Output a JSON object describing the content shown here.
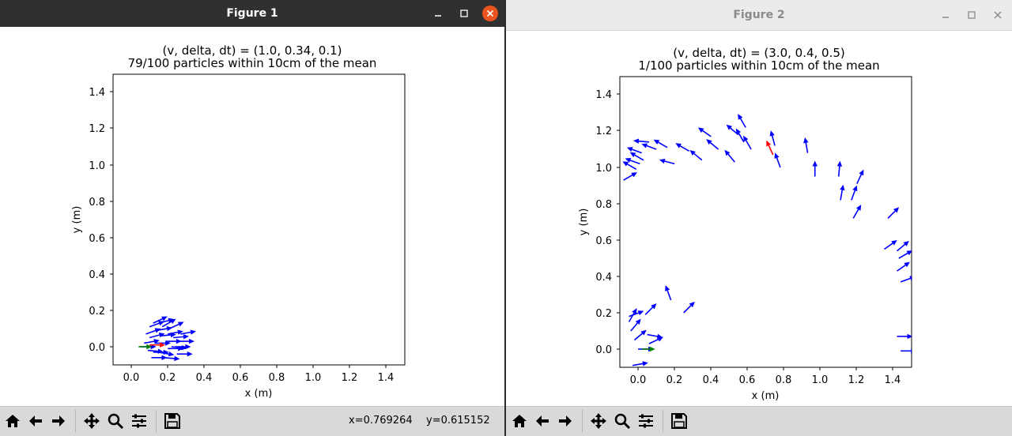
{
  "windows": [
    {
      "title": "Figure 1",
      "coords": {
        "x": "x=0.769264",
        "y": "y=0.615152"
      }
    },
    {
      "title": "Figure 2"
    }
  ],
  "colors": {
    "particle": "#0000ff",
    "estimate": "#ff0000",
    "truth": "#008000",
    "titlebar_active": "#303030",
    "titlebar_inactive": "#ebebeb",
    "close_button": "#e95420"
  },
  "toolbar_icons": [
    "home-icon",
    "back-arrow-icon",
    "forward-arrow-icon",
    "pan-icon",
    "zoom-icon",
    "configure-subplots-icon",
    "save-icon"
  ],
  "chart_data": [
    {
      "type": "scatter",
      "title": "(v, delta, dt) = (1.0, 0.34, 0.1)",
      "subtitle": "79/100 particles within 10cm of the mean",
      "xlabel": "x (m)",
      "ylabel": "y (m)",
      "xlim": [
        -0.1,
        1.5
      ],
      "ylim": [
        -0.1,
        1.5
      ],
      "xticks": [
        "0.0",
        "0.2",
        "0.4",
        "0.6",
        "0.8",
        "1.0",
        "1.2",
        "1.4"
      ],
      "yticks": [
        "0.0",
        "0.2",
        "0.4",
        "0.6",
        "0.8",
        "1.0",
        "1.2",
        "1.4"
      ],
      "grid": false,
      "particles": [
        {
          "x": 0.05,
          "y": 0.0,
          "theta": 0.0
        },
        {
          "x": 0.07,
          "y": 0.02,
          "theta": 10
        },
        {
          "x": 0.09,
          "y": -0.02,
          "theta": -5
        },
        {
          "x": 0.1,
          "y": 0.05,
          "theta": 15
        },
        {
          "x": 0.1,
          "y": 0.11,
          "theta": 20
        },
        {
          "x": 0.12,
          "y": 0.13,
          "theta": 25
        },
        {
          "x": 0.14,
          "y": 0.09,
          "theta": 10
        },
        {
          "x": 0.13,
          "y": 0.02,
          "theta": 0
        },
        {
          "x": 0.15,
          "y": -0.03,
          "theta": -10
        },
        {
          "x": 0.16,
          "y": 0.06,
          "theta": 5
        },
        {
          "x": 0.17,
          "y": 0.11,
          "theta": 30
        },
        {
          "x": 0.19,
          "y": 0.03,
          "theta": 0
        },
        {
          "x": 0.2,
          "y": -0.01,
          "theta": 0
        },
        {
          "x": 0.2,
          "y": 0.07,
          "theta": 10
        },
        {
          "x": 0.22,
          "y": 0.0,
          "theta": -5
        },
        {
          "x": 0.23,
          "y": 0.05,
          "theta": 5
        },
        {
          "x": 0.25,
          "y": -0.04,
          "theta": 0
        },
        {
          "x": 0.26,
          "y": 0.03,
          "theta": 0
        },
        {
          "x": 0.27,
          "y": 0.07,
          "theta": 10
        },
        {
          "x": 0.11,
          "y": -0.06,
          "theta": 0
        },
        {
          "x": 0.18,
          "y": -0.06,
          "theta": -5
        },
        {
          "x": 0.08,
          "y": 0.07,
          "theta": 20
        },
        {
          "x": 0.15,
          "y": 0.13,
          "theta": 15
        },
        {
          "x": 0.21,
          "y": 0.1,
          "theta": 25
        },
        {
          "x": 0.12,
          "y": -0.03,
          "theta": 0
        },
        {
          "x": 0.24,
          "y": 0.0,
          "theta": 0
        }
      ],
      "estimate": {
        "x": 0.1,
        "y": 0.01,
        "theta": 0
      },
      "truth": {
        "x": 0.04,
        "y": 0.0,
        "theta": 0
      }
    },
    {
      "type": "scatter",
      "title": "(v, delta, dt) = (3.0, 0.4, 0.5)",
      "subtitle": "1/100 particles within 10cm of the mean",
      "xlabel": "x (m)",
      "ylabel": "y (m)",
      "xlim": [
        -0.1,
        1.5
      ],
      "ylim": [
        -0.1,
        1.5
      ],
      "xticks": [
        "0.0",
        "0.2",
        "0.4",
        "0.6",
        "0.8",
        "1.0",
        "1.2",
        "1.4"
      ],
      "yticks": [
        "0.0",
        "0.2",
        "0.4",
        "0.6",
        "0.8",
        "1.0",
        "1.2",
        "1.4"
      ],
      "grid": false,
      "particles": [
        {
          "x": -0.05,
          "y": 0.18,
          "theta": 20
        },
        {
          "x": -0.05,
          "y": 0.15,
          "theta": 60
        },
        {
          "x": -0.04,
          "y": 0.1,
          "theta": 50
        },
        {
          "x": -0.02,
          "y": 0.05,
          "theta": 40
        },
        {
          "x": -0.03,
          "y": -0.09,
          "theta": 10
        },
        {
          "x": 0.04,
          "y": 0.19,
          "theta": 45
        },
        {
          "x": 0.05,
          "y": 0.08,
          "theta": -10
        },
        {
          "x": 0.06,
          "y": 0.03,
          "theta": 25
        },
        {
          "x": 0.0,
          "y": 0.0,
          "theta": 0
        },
        {
          "x": 0.18,
          "y": 0.27,
          "theta": 110
        },
        {
          "x": 0.25,
          "y": 0.2,
          "theta": 45
        },
        {
          "x": -0.08,
          "y": 0.93,
          "theta": 30
        },
        {
          "x": -0.01,
          "y": 0.99,
          "theta": 150
        },
        {
          "x": 0.01,
          "y": 1.02,
          "theta": 160
        },
        {
          "x": 0.03,
          "y": 1.04,
          "theta": 150
        },
        {
          "x": 0.02,
          "y": 1.08,
          "theta": 160
        },
        {
          "x": 0.06,
          "y": 1.14,
          "theta": 175
        },
        {
          "x": 0.1,
          "y": 1.1,
          "theta": 160
        },
        {
          "x": 0.16,
          "y": 1.11,
          "theta": 150
        },
        {
          "x": 0.2,
          "y": 1.02,
          "theta": 165
        },
        {
          "x": 0.28,
          "y": 1.09,
          "theta": 150
        },
        {
          "x": 0.35,
          "y": 1.04,
          "theta": 140
        },
        {
          "x": 0.4,
          "y": 1.17,
          "theta": 145
        },
        {
          "x": 0.44,
          "y": 1.1,
          "theta": 140
        },
        {
          "x": 0.53,
          "y": 1.03,
          "theta": 130
        },
        {
          "x": 0.55,
          "y": 1.18,
          "theta": 140
        },
        {
          "x": 0.58,
          "y": 1.14,
          "theta": 120
        },
        {
          "x": 0.62,
          "y": 1.1,
          "theta": 120
        },
        {
          "x": 0.59,
          "y": 1.22,
          "theta": 120
        },
        {
          "x": 0.75,
          "y": 1.12,
          "theta": 105
        },
        {
          "x": 0.78,
          "y": 1.0,
          "theta": 110
        },
        {
          "x": 0.93,
          "y": 1.08,
          "theta": 100
        },
        {
          "x": 0.97,
          "y": 0.95,
          "theta": 90
        },
        {
          "x": 1.1,
          "y": 0.95,
          "theta": 85
        },
        {
          "x": 1.11,
          "y": 0.82,
          "theta": 80
        },
        {
          "x": 1.17,
          "y": 0.82,
          "theta": 70
        },
        {
          "x": 1.2,
          "y": 0.91,
          "theta": 65
        },
        {
          "x": 1.18,
          "y": 0.72,
          "theta": 60
        },
        {
          "x": 1.37,
          "y": 0.72,
          "theta": 45
        },
        {
          "x": 1.35,
          "y": 0.55,
          "theta": 35
        },
        {
          "x": 1.42,
          "y": 0.54,
          "theta": 40
        },
        {
          "x": 1.43,
          "y": 0.5,
          "theta": 30
        },
        {
          "x": 1.42,
          "y": 0.43,
          "theta": 35
        },
        {
          "x": 1.44,
          "y": 0.37,
          "theta": 20
        },
        {
          "x": 1.42,
          "y": 0.07,
          "theta": 0
        },
        {
          "x": 1.44,
          "y": -0.01,
          "theta": 0
        }
      ],
      "estimate": {
        "x": 0.74,
        "y": 1.07,
        "theta": 115
      },
      "truth": {
        "x": 0.02,
        "y": 0.0,
        "theta": 0
      }
    }
  ]
}
